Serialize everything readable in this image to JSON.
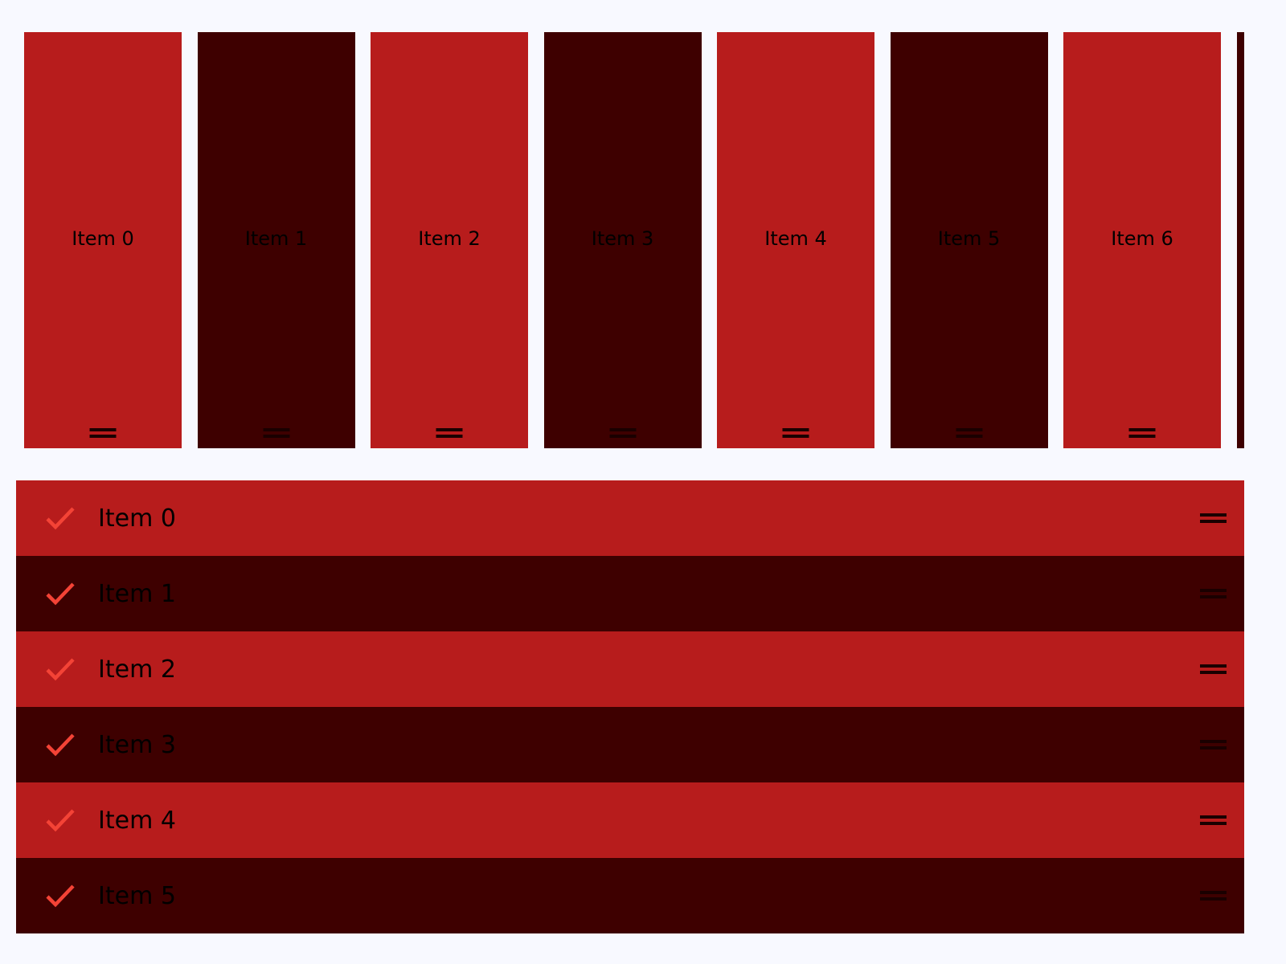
{
  "colors": {
    "primary": "#b71c1c",
    "primary_dark": "#3e0000",
    "background": "#f8f9ff",
    "check": "#f44336"
  },
  "horizontal_list": {
    "items": [
      {
        "label": "Item 0"
      },
      {
        "label": "Item 1"
      },
      {
        "label": "Item 2"
      },
      {
        "label": "Item 3"
      },
      {
        "label": "Item 4"
      },
      {
        "label": "Item 5"
      },
      {
        "label": "Item 6"
      },
      {
        "label": ""
      }
    ]
  },
  "vertical_list": {
    "items": [
      {
        "label": "Item 0",
        "checked": true
      },
      {
        "label": "Item 1",
        "checked": true
      },
      {
        "label": "Item 2",
        "checked": true
      },
      {
        "label": "Item 3",
        "checked": true
      },
      {
        "label": "Item 4",
        "checked": true
      },
      {
        "label": "Item 5",
        "checked": true
      }
    ]
  },
  "icons": {
    "drag": "drag-handle-icon",
    "check": "check-icon"
  }
}
